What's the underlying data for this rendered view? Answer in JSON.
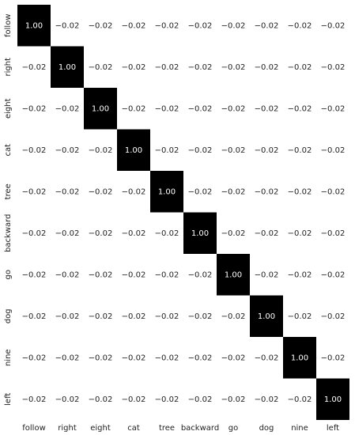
{
  "chart_data": {
    "type": "heatmap",
    "x_categories": [
      "follow",
      "right",
      "eight",
      "cat",
      "tree",
      "backward",
      "go",
      "dog",
      "nine",
      "left"
    ],
    "y_categories": [
      "follow",
      "right",
      "eight",
      "cat",
      "tree",
      "backward",
      "go",
      "dog",
      "nine",
      "left"
    ],
    "values": [
      [
        1.0,
        -0.02,
        -0.02,
        -0.02,
        -0.02,
        -0.02,
        -0.02,
        -0.02,
        -0.02,
        -0.02
      ],
      [
        -0.02,
        1.0,
        -0.02,
        -0.02,
        -0.02,
        -0.02,
        -0.02,
        -0.02,
        -0.02,
        -0.02
      ],
      [
        -0.02,
        -0.02,
        1.0,
        -0.02,
        -0.02,
        -0.02,
        -0.02,
        -0.02,
        -0.02,
        -0.02
      ],
      [
        -0.02,
        -0.02,
        -0.02,
        1.0,
        -0.02,
        -0.02,
        -0.02,
        -0.02,
        -0.02,
        -0.02
      ],
      [
        -0.02,
        -0.02,
        -0.02,
        -0.02,
        1.0,
        -0.02,
        -0.02,
        -0.02,
        -0.02,
        -0.02
      ],
      [
        -0.02,
        -0.02,
        -0.02,
        -0.02,
        -0.02,
        1.0,
        -0.02,
        -0.02,
        -0.02,
        -0.02
      ],
      [
        -0.02,
        -0.02,
        -0.02,
        -0.02,
        -0.02,
        -0.02,
        1.0,
        -0.02,
        -0.02,
        -0.02
      ],
      [
        -0.02,
        -0.02,
        -0.02,
        -0.02,
        -0.02,
        -0.02,
        -0.02,
        1.0,
        -0.02,
        -0.02
      ],
      [
        -0.02,
        -0.02,
        -0.02,
        -0.02,
        -0.02,
        -0.02,
        -0.02,
        -0.02,
        1.0,
        -0.02
      ],
      [
        -0.02,
        -0.02,
        -0.02,
        -0.02,
        -0.02,
        -0.02,
        -0.02,
        -0.02,
        -0.02,
        1.0
      ]
    ],
    "value_labels": [
      [
        "1.00",
        "−0.02",
        "−0.02",
        "−0.02",
        "−0.02",
        "−0.02",
        "−0.02",
        "−0.02",
        "−0.02",
        "−0.02"
      ],
      [
        "−0.02",
        "1.00",
        "−0.02",
        "−0.02",
        "−0.02",
        "−0.02",
        "−0.02",
        "−0.02",
        "−0.02",
        "−0.02"
      ],
      [
        "−0.02",
        "−0.02",
        "1.00",
        "−0.02",
        "−0.02",
        "−0.02",
        "−0.02",
        "−0.02",
        "−0.02",
        "−0.02"
      ],
      [
        "−0.02",
        "−0.02",
        "−0.02",
        "1.00",
        "−0.02",
        "−0.02",
        "−0.02",
        "−0.02",
        "−0.02",
        "−0.02"
      ],
      [
        "−0.02",
        "−0.02",
        "−0.02",
        "−0.02",
        "1.00",
        "−0.02",
        "−0.02",
        "−0.02",
        "−0.02",
        "−0.02"
      ],
      [
        "−0.02",
        "−0.02",
        "−0.02",
        "−0.02",
        "−0.02",
        "1.00",
        "−0.02",
        "−0.02",
        "−0.02",
        "−0.02"
      ],
      [
        "−0.02",
        "−0.02",
        "−0.02",
        "−0.02",
        "−0.02",
        "−0.02",
        "1.00",
        "−0.02",
        "−0.02",
        "−0.02"
      ],
      [
        "−0.02",
        "−0.02",
        "−0.02",
        "−0.02",
        "−0.02",
        "−0.02",
        "−0.02",
        "1.00",
        "−0.02",
        "−0.02"
      ],
      [
        "−0.02",
        "−0.02",
        "−0.02",
        "−0.02",
        "−0.02",
        "−0.02",
        "−0.02",
        "−0.02",
        "1.00",
        "−0.02"
      ],
      [
        "−0.02",
        "−0.02",
        "−0.02",
        "−0.02",
        "−0.02",
        "−0.02",
        "−0.02",
        "−0.02",
        "−0.02",
        "1.00"
      ]
    ],
    "colors": [
      "#ffffff",
      "#000000"
    ]
  }
}
